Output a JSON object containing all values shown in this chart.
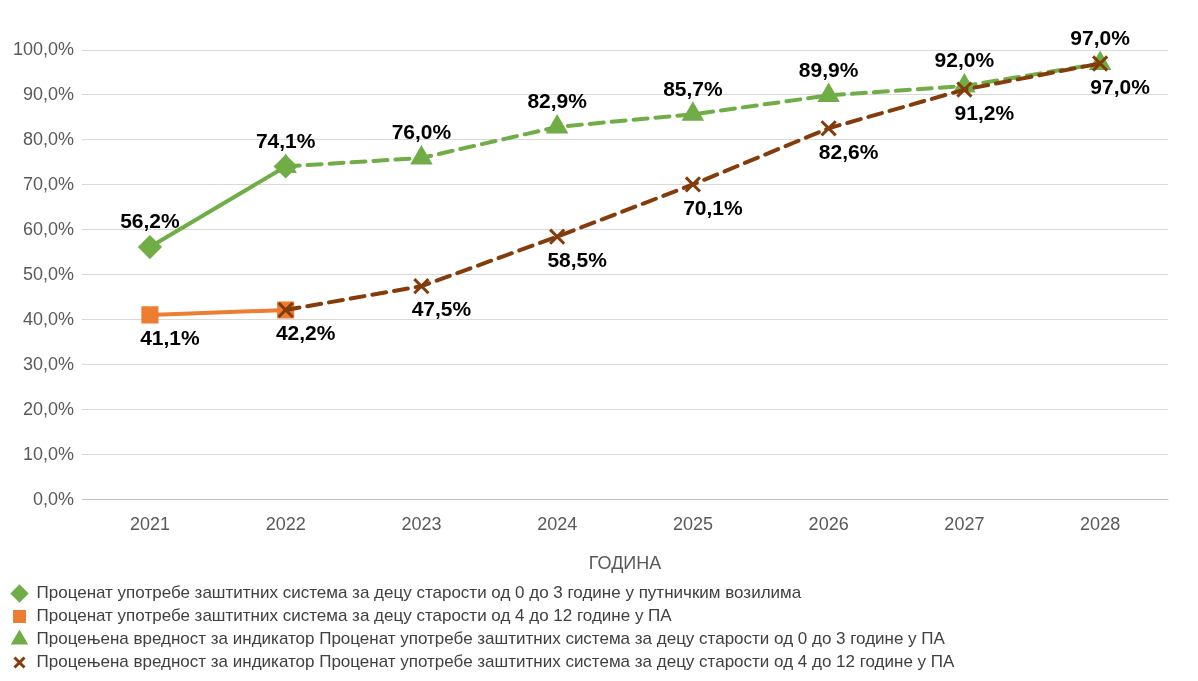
{
  "chart_data": {
    "type": "line",
    "xlabel": "ГОДИНА",
    "categories": [
      "2021",
      "2022",
      "2023",
      "2024",
      "2025",
      "2026",
      "2027",
      "2028"
    ],
    "ylim": [
      0,
      100
    ],
    "yticks": [
      {
        "value": 0,
        "label": "0,0%"
      },
      {
        "value": 10,
        "label": "10,0%"
      },
      {
        "value": 20,
        "label": "20,0%"
      },
      {
        "value": 30,
        "label": "30,0%"
      },
      {
        "value": 40,
        "label": "40,0%"
      },
      {
        "value": 50,
        "label": "50,0%"
      },
      {
        "value": 60,
        "label": "60,0%"
      },
      {
        "value": 70,
        "label": "70,0%"
      },
      {
        "value": 80,
        "label": "80,0%"
      },
      {
        "value": 90,
        "label": "90,0%"
      },
      {
        "value": 100,
        "label": "100,0%"
      }
    ],
    "grid": "y",
    "legend": "bottom",
    "series": [
      {
        "name": "Проценат употребе заштитних система за децу старости од 0 до 3 године у путничким возилима",
        "color": "#70ad47",
        "marker": "diamond",
        "line_style": "solid",
        "values": [
          56.2,
          74.1,
          null,
          null,
          null,
          null,
          null,
          null
        ],
        "value_labels": [
          "56,2%",
          "74,1%",
          null,
          null,
          null,
          null,
          null,
          null
        ]
      },
      {
        "name": "Проценат употребе заштитних система за децу старости од 4 до 12 године у ПА",
        "color": "#ed7d31",
        "marker": "square",
        "line_style": "solid",
        "values": [
          41.1,
          42.2,
          null,
          null,
          null,
          null,
          null,
          null
        ],
        "value_labels": [
          "41,1%",
          "42,2%",
          null,
          null,
          null,
          null,
          null,
          null
        ]
      },
      {
        "name": "Процењена вредност за индикатор Проценат употребе заштитних система за децу старости од 0 до 3 године у ПА",
        "color": "#70ad47",
        "marker": "triangle",
        "line_style": "dashed",
        "values": [
          null,
          74.1,
          76.0,
          82.9,
          85.7,
          89.9,
          92.0,
          97.0
        ],
        "value_labels": [
          null,
          null,
          "76,0%",
          "82,9%",
          "85,7%",
          "89,9%",
          "92,0%",
          "97,0%"
        ]
      },
      {
        "name": "Процењена вредност за индикатор Проценат употребе заштитних система за децу старости од 4 до 12 године у ПА",
        "color": "#843c0c",
        "marker": "cross",
        "line_style": "dashed",
        "values": [
          null,
          42.2,
          47.5,
          58.5,
          70.1,
          82.6,
          91.2,
          97.0
        ],
        "value_labels": [
          null,
          null,
          "47,5%",
          "58,5%",
          "70,1%",
          "82,6%",
          "91,2%",
          "97,0%"
        ]
      }
    ]
  }
}
